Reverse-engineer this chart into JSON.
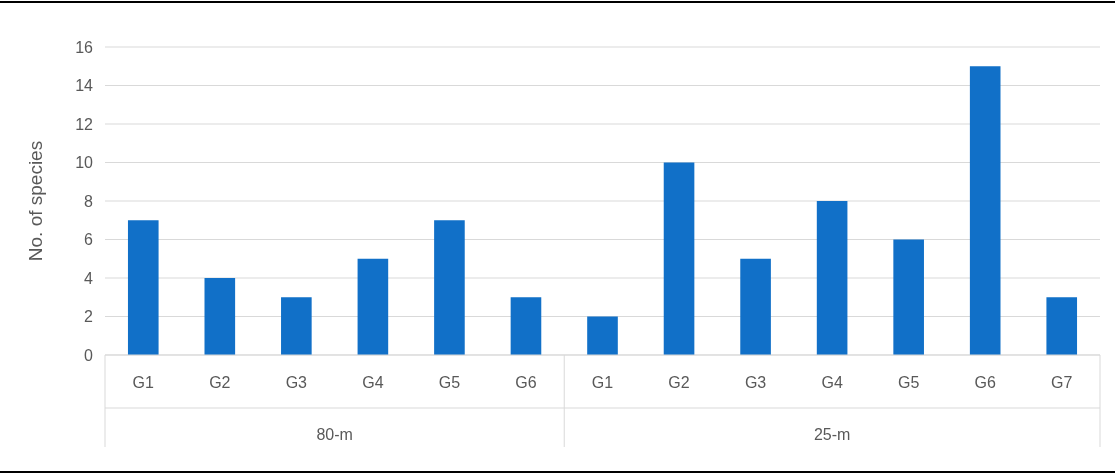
{
  "chart_data": {
    "type": "bar",
    "ylabel": "No. of species",
    "categories": [
      "G1",
      "G2",
      "G3",
      "G4",
      "G5",
      "G6",
      "G1",
      "G2",
      "G3",
      "G4",
      "G5",
      "G6",
      "G7"
    ],
    "values": [
      7,
      4,
      3,
      5,
      7,
      3,
      2,
      10,
      5,
      8,
      6,
      15,
      3
    ],
    "color": "#1170c8",
    "ylim": [
      0,
      16
    ],
    "yticks": [
      0,
      2,
      4,
      6,
      8,
      10,
      12,
      14,
      16
    ],
    "grid": "y",
    "annotations": [
      "80-m",
      "25-m"
    ]
  }
}
